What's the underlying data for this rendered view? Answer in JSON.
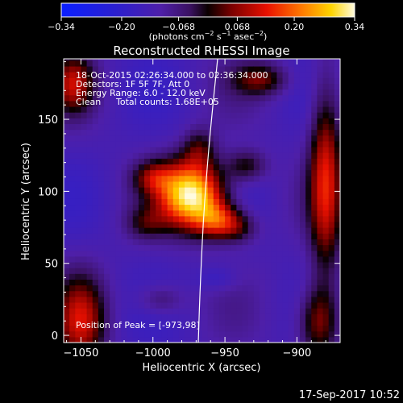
{
  "colorbar": {
    "ticks": [
      "−0.34",
      "−0.20",
      "−0.068",
      "0.068",
      "0.20",
      "0.34"
    ],
    "tick_values": [
      -0.34,
      -0.2,
      -0.068,
      0.068,
      0.2,
      0.34
    ],
    "units_main": "(photons cm",
    "units_exp1": "−2",
    "units_mid": " s",
    "units_exp2": "−1",
    "units_mid2": " asec",
    "units_exp3": "−2",
    "units_end": ")"
  },
  "chart_data": {
    "type": "heatmap",
    "title": "Reconstructed RHESSI Image",
    "xlabel": "Heliocentric X (arcsec)",
    "ylabel": "Heliocentric Y (arcsec)",
    "xlim": [
      -1062,
      -870
    ],
    "ylim": [
      -5,
      192
    ],
    "x_ticks": [
      -1050,
      -1000,
      -950,
      -900
    ],
    "x_tick_labels": [
      "−1050",
      "−1000",
      "−950",
      "−900"
    ],
    "y_ticks": [
      0,
      50,
      100,
      150
    ],
    "y_tick_labels": [
      "0",
      "50",
      "100",
      "150"
    ],
    "color_range": [
      -0.34,
      0.34
    ],
    "colormap": "rainbow/heat (blue-purple-red-orange-yellow-white)",
    "peak": [
      -973,
      98
    ],
    "annotations": {
      "time_range": "18-Oct-2015 02:26:34.000 to 02:36:34.000",
      "detectors": "Detectors: 1F 5F 7F, Att 0",
      "energy": "Energy Range: 6.0 - 12.0 keV",
      "method": "Clean",
      "counts": "Total counts: 1.68E+05",
      "peak_label": "Position of Peak = [-973,98]"
    }
  },
  "footer": {
    "timestamp": "17-Sep-2017 10:52"
  }
}
